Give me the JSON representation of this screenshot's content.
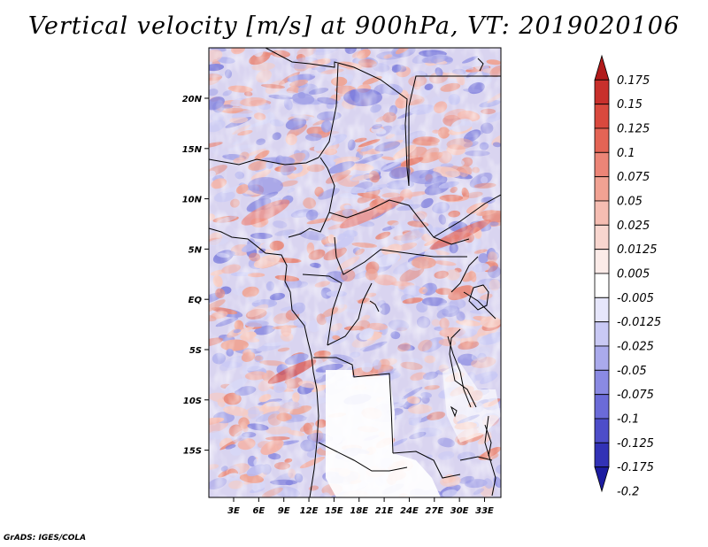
{
  "title": "Vertical velocity [m/s] at 900hPa, VT: 2019020106",
  "footer": "GrADS: IGES/COLA",
  "map": {
    "lat_labels": [
      "20N",
      "15N",
      "10N",
      "5N",
      "EQ",
      "5S",
      "10S",
      "15S"
    ],
    "lon_labels": [
      "3E",
      "6E",
      "9E",
      "12E",
      "15E",
      "18E",
      "21E",
      "24E",
      "27E",
      "30E",
      "33E"
    ]
  },
  "colorbar": {
    "levels": [
      "0.175",
      "0.15",
      "0.125",
      "0.1",
      "0.075",
      "0.05",
      "0.025",
      "0.0125",
      "0.005",
      "-0.005",
      "-0.0125",
      "-0.025",
      "-0.05",
      "-0.075",
      "-0.1",
      "-0.125",
      "-0.175",
      "-0.2"
    ],
    "colors": [
      "#b11a1a",
      "#c8302c",
      "#d9493e",
      "#e46455",
      "#ec8577",
      "#f1a293",
      "#f5bdb2",
      "#f8d6cf",
      "#fbebe8",
      "#ffffff",
      "#e6e6fb",
      "#c9c9f4",
      "#aaaaec",
      "#8a8ae3",
      "#6b6bd8",
      "#4d4dc9",
      "#3232b6",
      "#1c1ca0"
    ]
  }
}
